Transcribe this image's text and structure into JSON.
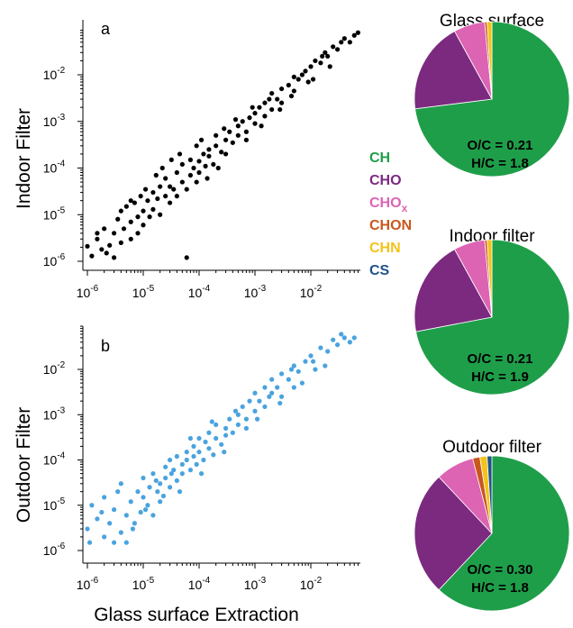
{
  "figure": {
    "shared_xlabel": "Glass surface Extraction"
  },
  "chart_data": [
    {
      "panel": "a",
      "type": "scatter",
      "xlabel": "",
      "ylabel": "Indoor Filter",
      "xscale": "log",
      "yscale": "log",
      "xlim": [
        7e-07,
        0.09
      ],
      "ylim": [
        7e-07,
        0.09
      ],
      "xticks": [
        {
          "base": "10",
          "exp": "-6"
        },
        {
          "base": "10",
          "exp": "-5"
        },
        {
          "base": "10",
          "exp": "-4"
        },
        {
          "base": "10",
          "exp": "-3"
        },
        {
          "base": "10",
          "exp": "-2"
        }
      ],
      "yticks": [
        {
          "base": "10",
          "exp": "-6"
        },
        {
          "base": "10",
          "exp": "-5"
        },
        {
          "base": "10",
          "exp": "-4"
        },
        {
          "base": "10",
          "exp": "-3"
        },
        {
          "base": "10",
          "exp": "-2"
        }
      ],
      "marker_color": "#000000",
      "grid": false,
      "points": [
        [
          1e-06,
          2.1e-06
        ],
        [
          1.2e-06,
          1.3e-06
        ],
        [
          1.5e-06,
          3e-06
        ],
        [
          1.8e-06,
          1.8e-06
        ],
        [
          2e-06,
          5e-06
        ],
        [
          2.5e-06,
          2.2e-06
        ],
        [
          3e-06,
          1.2e-06
        ],
        [
          3e-06,
          4e-06
        ],
        [
          3.5e-06,
          8e-06
        ],
        [
          4e-06,
          2.5e-06
        ],
        [
          4.5e-06,
          5e-06
        ],
        [
          5e-06,
          1.5e-05
        ],
        [
          6e-06,
          3e-06
        ],
        [
          6e-06,
          7e-06
        ],
        [
          7e-06,
          1.8e-05
        ],
        [
          8e-06,
          4e-06
        ],
        [
          8e-06,
          9e-06
        ],
        [
          9e-06,
          2.5e-05
        ],
        [
          1e-05,
          6e-06
        ],
        [
          1e-05,
          1.2e-05
        ],
        [
          1.2e-05,
          2e-05
        ],
        [
          1.3e-05,
          9e-06
        ],
        [
          1.5e-05,
          3e-05
        ],
        [
          1.5e-05,
          1.3e-05
        ],
        [
          1.8e-05,
          2.2e-05
        ],
        [
          2e-05,
          1e-05
        ],
        [
          2e-05,
          4e-05
        ],
        [
          2.5e-05,
          2.5e-05
        ],
        [
          2.5e-05,
          6e-05
        ],
        [
          3e-05,
          1.8e-05
        ],
        [
          3e-05,
          4e-05
        ],
        [
          3.5e-05,
          3.5e-05
        ],
        [
          4e-05,
          8e-05
        ],
        [
          4e-05,
          2.5e-05
        ],
        [
          5e-05,
          5e-05
        ],
        [
          5e-05,
          0.00012
        ],
        [
          6e-05,
          3.5e-05
        ],
        [
          6e-05,
          1.2e-06
        ],
        [
          7e-05,
          7e-05
        ],
        [
          7e-05,
          0.00015
        ],
        [
          8e-05,
          0.0001
        ],
        [
          9e-05,
          5e-05
        ],
        [
          0.0001,
          0.00014
        ],
        [
          0.0001,
          8e-05
        ],
        [
          0.00012,
          0.0002
        ],
        [
          0.00013,
          0.00011
        ],
        [
          0.00015,
          0.00025
        ],
        [
          0.00015,
          0.00018
        ],
        [
          0.00018,
          0.00012
        ],
        [
          0.0002,
          0.0003
        ],
        [
          0.0002,
          0.0005
        ],
        [
          0.00025,
          0.00022
        ],
        [
          0.0003,
          0.0004
        ],
        [
          0.0003,
          0.0002
        ],
        [
          0.00035,
          0.0006
        ],
        [
          0.0004,
          0.00035
        ],
        [
          0.0005,
          0.0008
        ],
        [
          0.0005,
          0.0005
        ],
        [
          0.0006,
          0.001
        ],
        [
          0.0007,
          0.0006
        ],
        [
          0.0008,
          0.0012
        ],
        [
          0.001,
          0.0015
        ],
        [
          0.001,
          0.0009
        ],
        [
          0.0012,
          0.002
        ],
        [
          0.0015,
          0.0013
        ],
        [
          0.0015,
          0.0025
        ],
        [
          0.002,
          0.0018
        ],
        [
          0.002,
          0.004
        ],
        [
          0.0025,
          0.003
        ],
        [
          0.003,
          0.005
        ],
        [
          0.003,
          0.0025
        ],
        [
          0.004,
          0.006
        ],
        [
          0.005,
          0.0045
        ],
        [
          0.005,
          0.009
        ],
        [
          0.006,
          0.008
        ],
        [
          0.008,
          0.012
        ],
        [
          0.009,
          0.007
        ],
        [
          0.01,
          0.015
        ],
        [
          0.012,
          0.02
        ],
        [
          0.015,
          0.018
        ],
        [
          0.018,
          0.03
        ],
        [
          0.02,
          0.025
        ],
        [
          0.025,
          0.04
        ],
        [
          0.03,
          0.035
        ],
        [
          0.04,
          0.06
        ],
        [
          0.05,
          0.05
        ],
        [
          0.06,
          0.07
        ],
        [
          0.07,
          0.08
        ],
        [
          1.5e-06,
          4e-06
        ],
        [
          2.2e-06,
          1.5e-06
        ],
        [
          4e-06,
          1.2e-05
        ],
        [
          6e-06,
          2e-05
        ],
        [
          1.1e-05,
          3.5e-05
        ],
        [
          1.7e-05,
          7e-05
        ],
        [
          2.2e-05,
          0.0001
        ],
        [
          3.2e-05,
          0.00015
        ],
        [
          4.5e-05,
          0.0002
        ],
        [
          9e-05,
          0.0003
        ],
        [
          0.00011,
          0.0004
        ],
        [
          0.00014,
          6e-05
        ],
        [
          0.00022,
          0.0001
        ],
        [
          0.00028,
          0.0007
        ],
        [
          0.00045,
          0.0011
        ],
        [
          0.0007,
          0.0004
        ],
        [
          0.0009,
          0.002
        ],
        [
          0.0013,
          0.0008
        ],
        [
          0.0018,
          0.003
        ],
        [
          0.0028,
          0.0018
        ],
        [
          0.0045,
          0.0035
        ],
        [
          0.007,
          0.01
        ],
        [
          0.011,
          0.008
        ],
        [
          0.016,
          0.025
        ],
        [
          0.022,
          0.015
        ],
        [
          0.035,
          0.05
        ]
      ]
    },
    {
      "panel": "b",
      "type": "scatter",
      "xlabel": "Glass surface Extraction",
      "ylabel": "Outdoor Filter",
      "xscale": "log",
      "yscale": "log",
      "xlim": [
        7e-07,
        0.09
      ],
      "ylim": [
        7e-07,
        0.09
      ],
      "xticks": [
        {
          "base": "10",
          "exp": "-6"
        },
        {
          "base": "10",
          "exp": "-5"
        },
        {
          "base": "10",
          "exp": "-4"
        },
        {
          "base": "10",
          "exp": "-3"
        },
        {
          "base": "10",
          "exp": "-2"
        }
      ],
      "yticks": [
        {
          "base": "10",
          "exp": "-6"
        },
        {
          "base": "10",
          "exp": "-5"
        },
        {
          "base": "10",
          "exp": "-4"
        },
        {
          "base": "10",
          "exp": "-3"
        },
        {
          "base": "10",
          "exp": "-2"
        }
      ],
      "marker_color": "#4aa3df",
      "grid": false,
      "points": [
        [
          1e-06,
          3e-06
        ],
        [
          1.2e-06,
          1e-05
        ],
        [
          1.5e-06,
          5e-06
        ],
        [
          2e-06,
          2e-06
        ],
        [
          2e-06,
          1.5e-05
        ],
        [
          2.5e-06,
          4e-06
        ],
        [
          3e-06,
          1.5e-06
        ],
        [
          3e-06,
          8e-06
        ],
        [
          4e-06,
          2.5e-06
        ],
        [
          4e-06,
          3e-05
        ],
        [
          5e-06,
          6e-06
        ],
        [
          5e-06,
          1.5e-06
        ],
        [
          6e-06,
          1.2e-05
        ],
        [
          7e-06,
          4e-06
        ],
        [
          8e-06,
          2e-05
        ],
        [
          9e-06,
          7e-06
        ],
        [
          1e-05,
          1.5e-05
        ],
        [
          1e-05,
          4e-05
        ],
        [
          1.2e-05,
          1e-05
        ],
        [
          1.3e-05,
          2.5e-05
        ],
        [
          1.5e-05,
          6e-06
        ],
        [
          1.5e-05,
          5e-05
        ],
        [
          1.8e-05,
          2e-05
        ],
        [
          2e-05,
          3e-05
        ],
        [
          2e-05,
          1.2e-05
        ],
        [
          2.5e-05,
          7e-05
        ],
        [
          2.5e-05,
          4e-05
        ],
        [
          3e-05,
          2.5e-05
        ],
        [
          3e-05,
          0.0001
        ],
        [
          3.5e-05,
          6e-05
        ],
        [
          4e-05,
          3.5e-05
        ],
        [
          4e-05,
          0.00012
        ],
        [
          5e-05,
          8e-05
        ],
        [
          5e-05,
          5e-05
        ],
        [
          6e-05,
          0.00015
        ],
        [
          6e-05,
          0.0001
        ],
        [
          7e-05,
          6e-05
        ],
        [
          8e-05,
          0.0002
        ],
        [
          8e-05,
          0.00012
        ],
        [
          9e-05,
          8e-05
        ],
        [
          0.0001,
          0.0003
        ],
        [
          0.0001,
          0.00015
        ],
        [
          0.00012,
          0.0001
        ],
        [
          0.00013,
          0.00025
        ],
        [
          0.00015,
          0.0004
        ],
        [
          0.00015,
          0.00018
        ],
        [
          0.00018,
          0.00013
        ],
        [
          0.0002,
          0.0003
        ],
        [
          0.0002,
          0.0006
        ],
        [
          0.00025,
          0.00022
        ],
        [
          0.0003,
          0.0005
        ],
        [
          0.0003,
          0.00035
        ],
        [
          0.00035,
          0.0008
        ],
        [
          0.0004,
          0.0004
        ],
        [
          0.0005,
          0.001
        ],
        [
          0.0005,
          0.0006
        ],
        [
          0.0006,
          0.0015
        ],
        [
          0.0007,
          0.0008
        ],
        [
          0.0008,
          0.002
        ],
        [
          0.001,
          0.0012
        ],
        [
          0.001,
          0.003
        ],
        [
          0.0012,
          0.002
        ],
        [
          0.0015,
          0.004
        ],
        [
          0.0015,
          0.0015
        ],
        [
          0.002,
          0.003
        ],
        [
          0.002,
          0.006
        ],
        [
          0.0025,
          0.004
        ],
        [
          0.003,
          0.008
        ],
        [
          0.003,
          0.0025
        ],
        [
          0.004,
          0.006
        ],
        [
          0.005,
          0.012
        ],
        [
          0.005,
          0.004
        ],
        [
          0.006,
          0.009
        ],
        [
          0.008,
          0.015
        ],
        [
          0.01,
          0.02
        ],
        [
          0.012,
          0.01
        ],
        [
          0.015,
          0.03
        ],
        [
          0.02,
          0.025
        ],
        [
          0.025,
          0.045
        ],
        [
          0.03,
          0.035
        ],
        [
          0.04,
          0.05
        ],
        [
          0.05,
          0.04
        ],
        [
          0.06,
          0.05
        ],
        [
          1.1e-06,
          1.5e-06
        ],
        [
          1.8e-06,
          7e-06
        ],
        [
          3.5e-06,
          2e-05
        ],
        [
          6.5e-06,
          3e-06
        ],
        [
          1.1e-05,
          8e-06
        ],
        [
          1.7e-05,
          3.5e-05
        ],
        [
          2.3e-05,
          1.6e-05
        ],
        [
          3.2e-05,
          5e-05
        ],
        [
          4.5e-05,
          2e-05
        ],
        [
          7e-05,
          0.0003
        ],
        [
          0.00011,
          5e-05
        ],
        [
          0.00017,
          0.0007
        ],
        [
          0.00028,
          0.00015
        ],
        [
          0.00045,
          0.0012
        ],
        [
          0.0007,
          0.0005
        ],
        [
          0.0011,
          0.0008
        ],
        [
          0.0018,
          0.0025
        ],
        [
          0.0028,
          0.0018
        ],
        [
          0.0045,
          0.01
        ],
        [
          0.007,
          0.005
        ],
        [
          0.011,
          0.015
        ],
        [
          0.018,
          0.012
        ],
        [
          0.035,
          0.06
        ]
      ]
    },
    {
      "type": "pie",
      "title": "Glass surface",
      "labels": [
        "CH",
        "CHO",
        "CHOx",
        "CHON",
        "CHN",
        "CS"
      ],
      "values": [
        73.0,
        19.0,
        6.5,
        0.5,
        1.0,
        0.0
      ],
      "annotations": [
        "O/C = 0.21",
        "H/C = 1.8"
      ]
    },
    {
      "type": "pie",
      "title": "Indoor filter",
      "labels": [
        "CH",
        "CHO",
        "CHOx",
        "CHON",
        "CHN",
        "CS"
      ],
      "values": [
        72.0,
        20.0,
        6.5,
        0.5,
        1.0,
        0.0
      ],
      "annotations": [
        "O/C = 0.21",
        "H/C = 1.9"
      ]
    },
    {
      "type": "pie",
      "title": "Outdoor filter",
      "labels": [
        "CH",
        "CHO",
        "CHOx",
        "CHON",
        "CHN",
        "CS"
      ],
      "values": [
        62.0,
        26.0,
        8.0,
        1.5,
        1.5,
        1.0
      ],
      "annotations": [
        "O/C = 0.30",
        "H/C = 1.8"
      ]
    }
  ],
  "legend": {
    "items": [
      {
        "label": "CH",
        "sub": "",
        "color": "#1f9e4a"
      },
      {
        "label": "CHO",
        "sub": "",
        "color": "#7b2a7f"
      },
      {
        "label": "CHO",
        "sub": "x",
        "color": "#dd63b3"
      },
      {
        "label": "CHON",
        "sub": "",
        "color": "#c9571e"
      },
      {
        "label": "CHN",
        "sub": "",
        "color": "#f3c31a"
      },
      {
        "label": "CS",
        "sub": "",
        "color": "#1f5288"
      }
    ]
  }
}
